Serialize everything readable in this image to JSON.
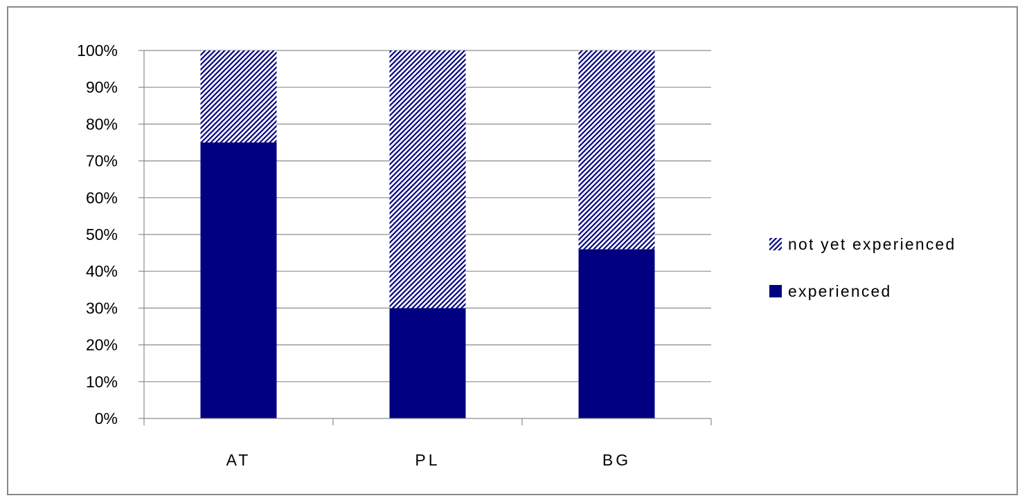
{
  "chart_data": {
    "type": "bar",
    "stacked": true,
    "percent_stacked": true,
    "categories": [
      "AT",
      "PL",
      "BG"
    ],
    "series": [
      {
        "name": "experienced",
        "values": [
          75,
          30,
          46
        ],
        "color": "#000080",
        "fill": "solid"
      },
      {
        "name": "not yet experienced",
        "values": [
          25,
          70,
          54
        ],
        "color": "#000080",
        "fill": "diagonal-hatch"
      }
    ],
    "yticks": [
      "0%",
      "10%",
      "20%",
      "30%",
      "40%",
      "50%",
      "60%",
      "70%",
      "80%",
      "90%",
      "100%"
    ],
    "ylim": [
      0,
      100
    ],
    "grid": true,
    "legend": {
      "position": "right",
      "entries": [
        "not yet experienced",
        "experienced"
      ]
    }
  }
}
